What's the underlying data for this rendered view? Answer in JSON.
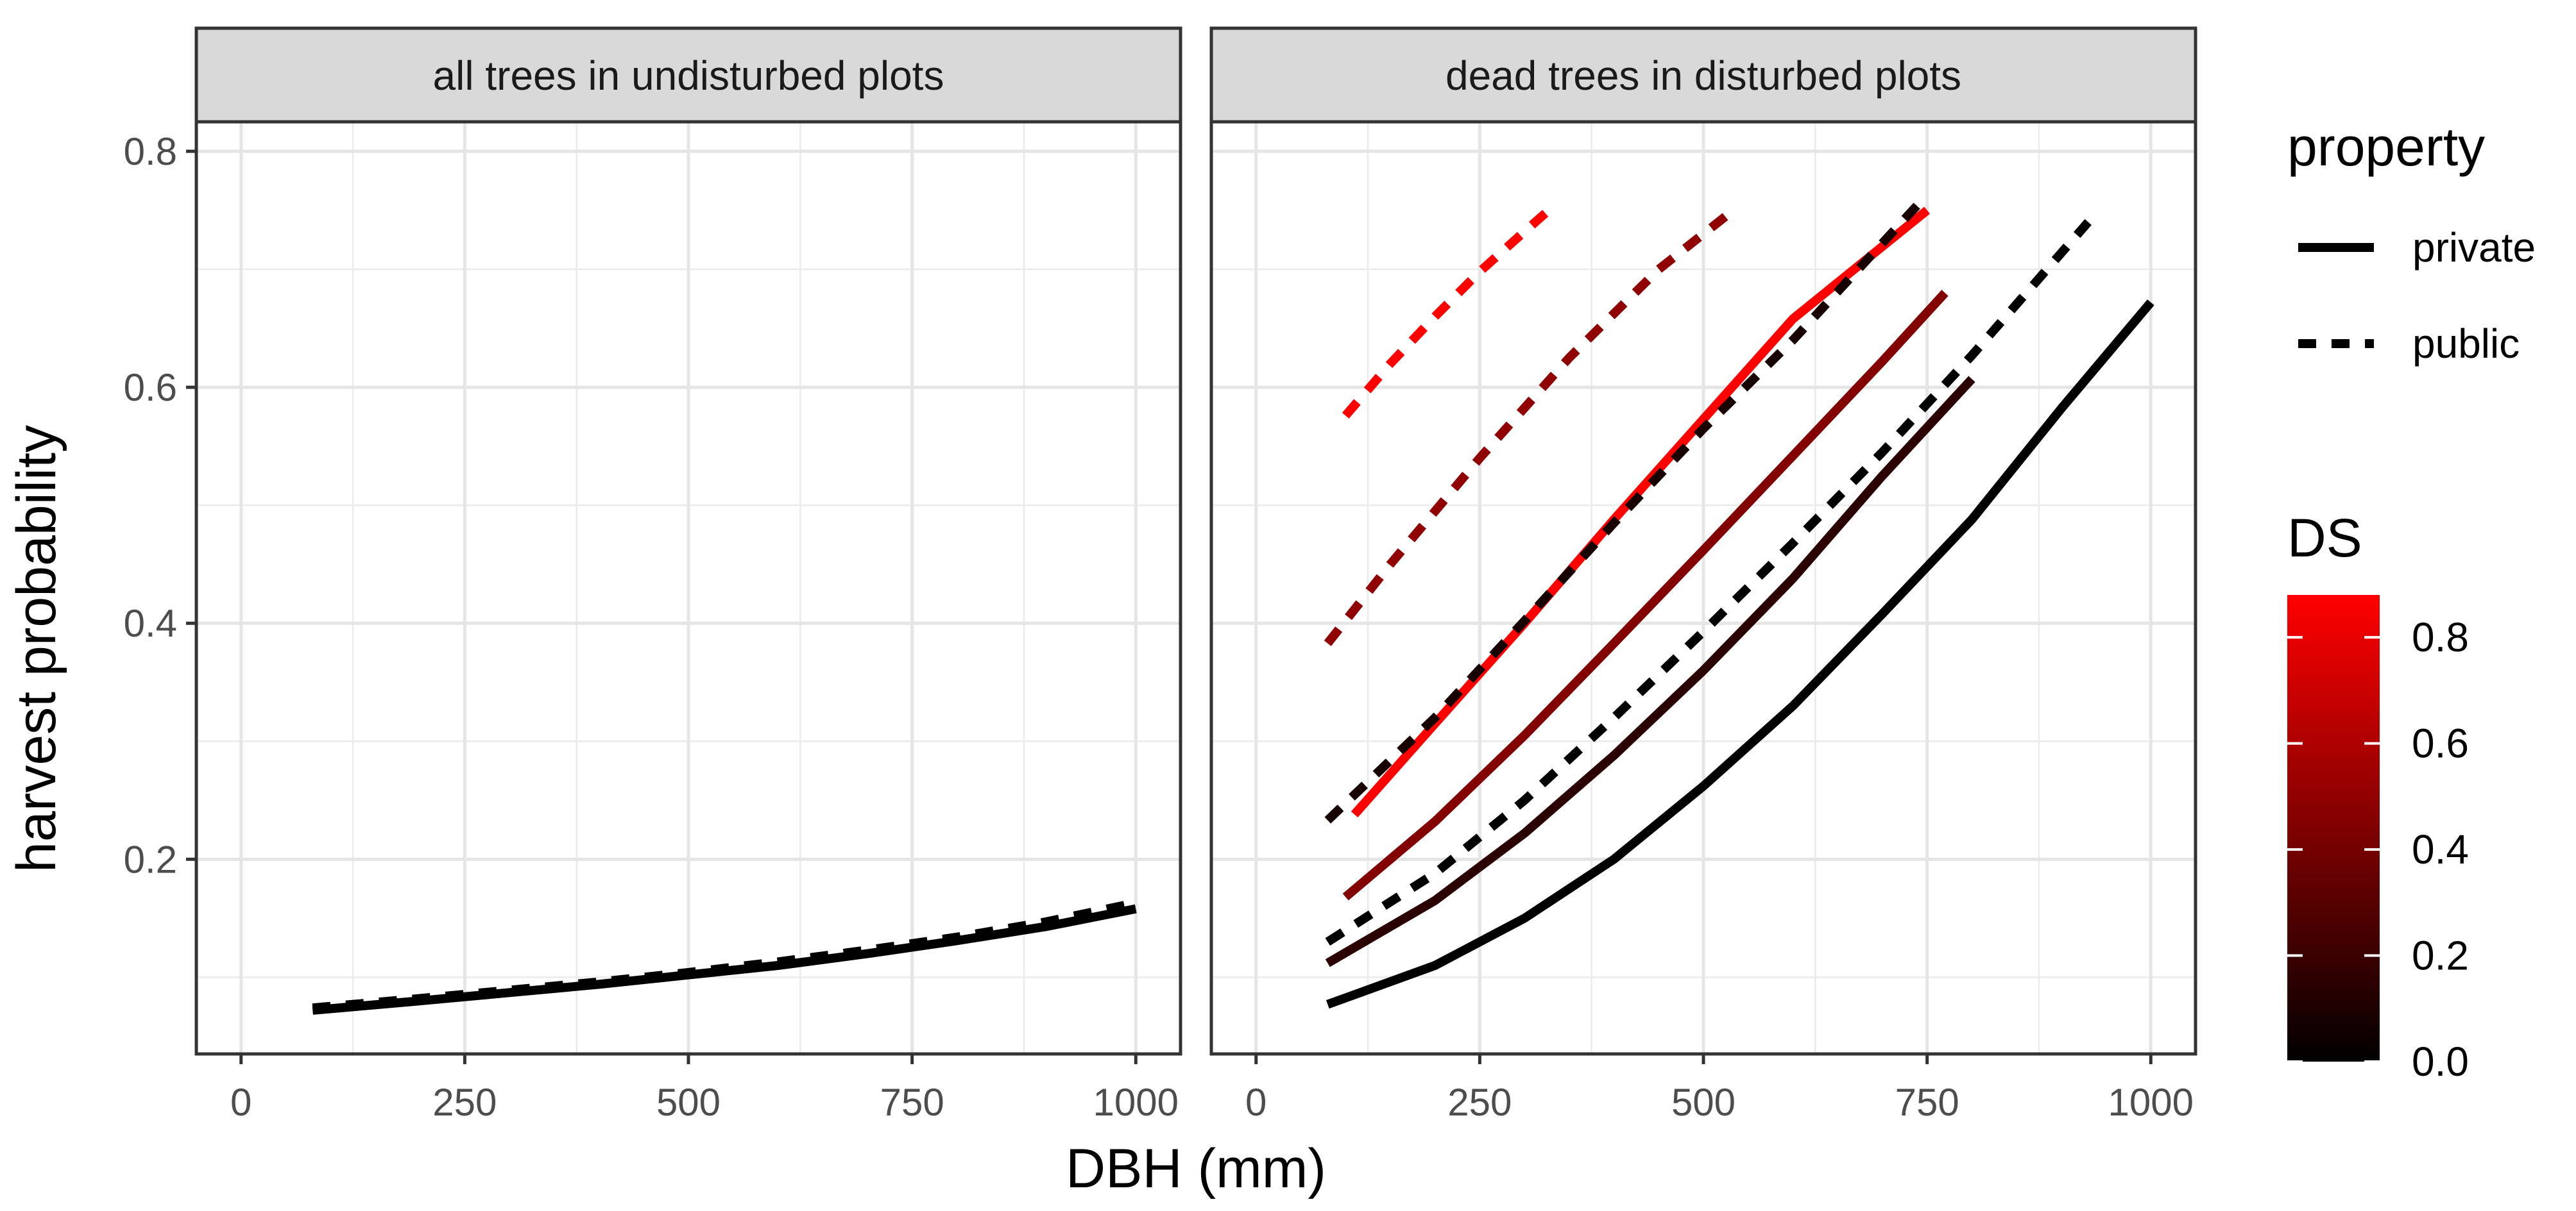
{
  "chart_data": {
    "type": "line",
    "facets": [
      {
        "title": "all trees in undisturbed plots",
        "series": [
          {
            "property": "private",
            "DS": 0.0,
            "x": [
              80,
              200,
              300,
              400,
              500,
              600,
              700,
              800,
              900,
              1000
            ],
            "y": [
              0.072,
              0.08,
              0.087,
              0.094,
              0.102,
              0.11,
              0.12,
              0.131,
              0.143,
              0.158
            ]
          },
          {
            "property": "public",
            "DS": 0.0,
            "x": [
              80,
              200,
              300,
              400,
              500,
              600,
              700,
              800,
              900,
              1000
            ],
            "y": [
              0.074,
              0.082,
              0.089,
              0.096,
              0.104,
              0.113,
              0.123,
              0.134,
              0.147,
              0.163
            ]
          }
        ]
      },
      {
        "title": "dead trees in disturbed plots",
        "series": [
          {
            "property": "private",
            "DS": 0.0,
            "x": [
              80,
              200,
              300,
              400,
              500,
              600,
              700,
              800,
              900,
              1000
            ],
            "y": [
              0.077,
              0.11,
              0.15,
              0.2,
              0.262,
              0.33,
              0.408,
              0.488,
              0.582,
              0.672
            ]
          },
          {
            "property": "private",
            "DS": 0.15,
            "x": [
              80,
              200,
              300,
              400,
              500,
              600,
              700,
              800
            ],
            "y": [
              0.112,
              0.165,
              0.222,
              0.288,
              0.36,
              0.438,
              0.525,
              0.607
            ]
          },
          {
            "property": "private",
            "DS": 0.45,
            "x": [
              100,
              200,
              300,
              400,
              500,
              600,
              700,
              770
            ],
            "y": [
              0.168,
              0.232,
              0.305,
              0.383,
              0.462,
              0.542,
              0.622,
              0.68
            ]
          },
          {
            "property": "private",
            "DS": 0.88,
            "x": [
              110,
              200,
              300,
              400,
              500,
              600,
              750
            ],
            "y": [
              0.238,
              0.315,
              0.4,
              0.488,
              0.573,
              0.658,
              0.75
            ]
          },
          {
            "property": "public",
            "DS": 0.0,
            "x": [
              80,
              200,
              300,
              400,
              500,
              600,
              700,
              800,
              930
            ],
            "y": [
              0.13,
              0.188,
              0.25,
              0.32,
              0.393,
              0.468,
              0.545,
              0.627,
              0.74
            ]
          },
          {
            "property": "public",
            "DS": 0.08,
            "x": [
              80,
              200,
              300,
              400,
              500,
              600,
              740
            ],
            "y": [
              0.233,
              0.32,
              0.402,
              0.485,
              0.565,
              0.64,
              0.755
            ]
          },
          {
            "property": "public",
            "DS": 0.5,
            "x": [
              80,
              150,
              250,
              350,
              450,
              530
            ],
            "y": [
              0.383,
              0.45,
              0.54,
              0.625,
              0.7,
              0.748
            ]
          },
          {
            "property": "public",
            "DS": 0.88,
            "x": [
              100,
              150,
              200,
              250,
              300,
              330
            ],
            "y": [
              0.576,
              0.62,
              0.66,
              0.698,
              0.732,
              0.752
            ]
          }
        ]
      }
    ],
    "x_ticks": [
      "0",
      "250",
      "500",
      "750",
      "1000"
    ],
    "y_ticks": [
      "0.2",
      "0.4",
      "0.6",
      "0.8"
    ],
    "xlabel": "DBH (mm)",
    "ylabel": "harvest probability",
    "xlim": [
      -50,
      1050
    ],
    "ylim": [
      0.035,
      0.825
    ],
    "grid": true,
    "legend": {
      "placement": "right",
      "linetype_title": "property",
      "linetype_entries": [
        {
          "label": "private",
          "style": "solid"
        },
        {
          "label": "public",
          "style": "dashed"
        }
      ],
      "color_title": "DS",
      "colorbar_ticks": [
        "0.0",
        "0.2",
        "0.4",
        "0.6",
        "0.8"
      ],
      "colorbar_range": [
        0,
        0.88
      ],
      "color_low": "#000000",
      "color_high": "#ff0000"
    }
  }
}
